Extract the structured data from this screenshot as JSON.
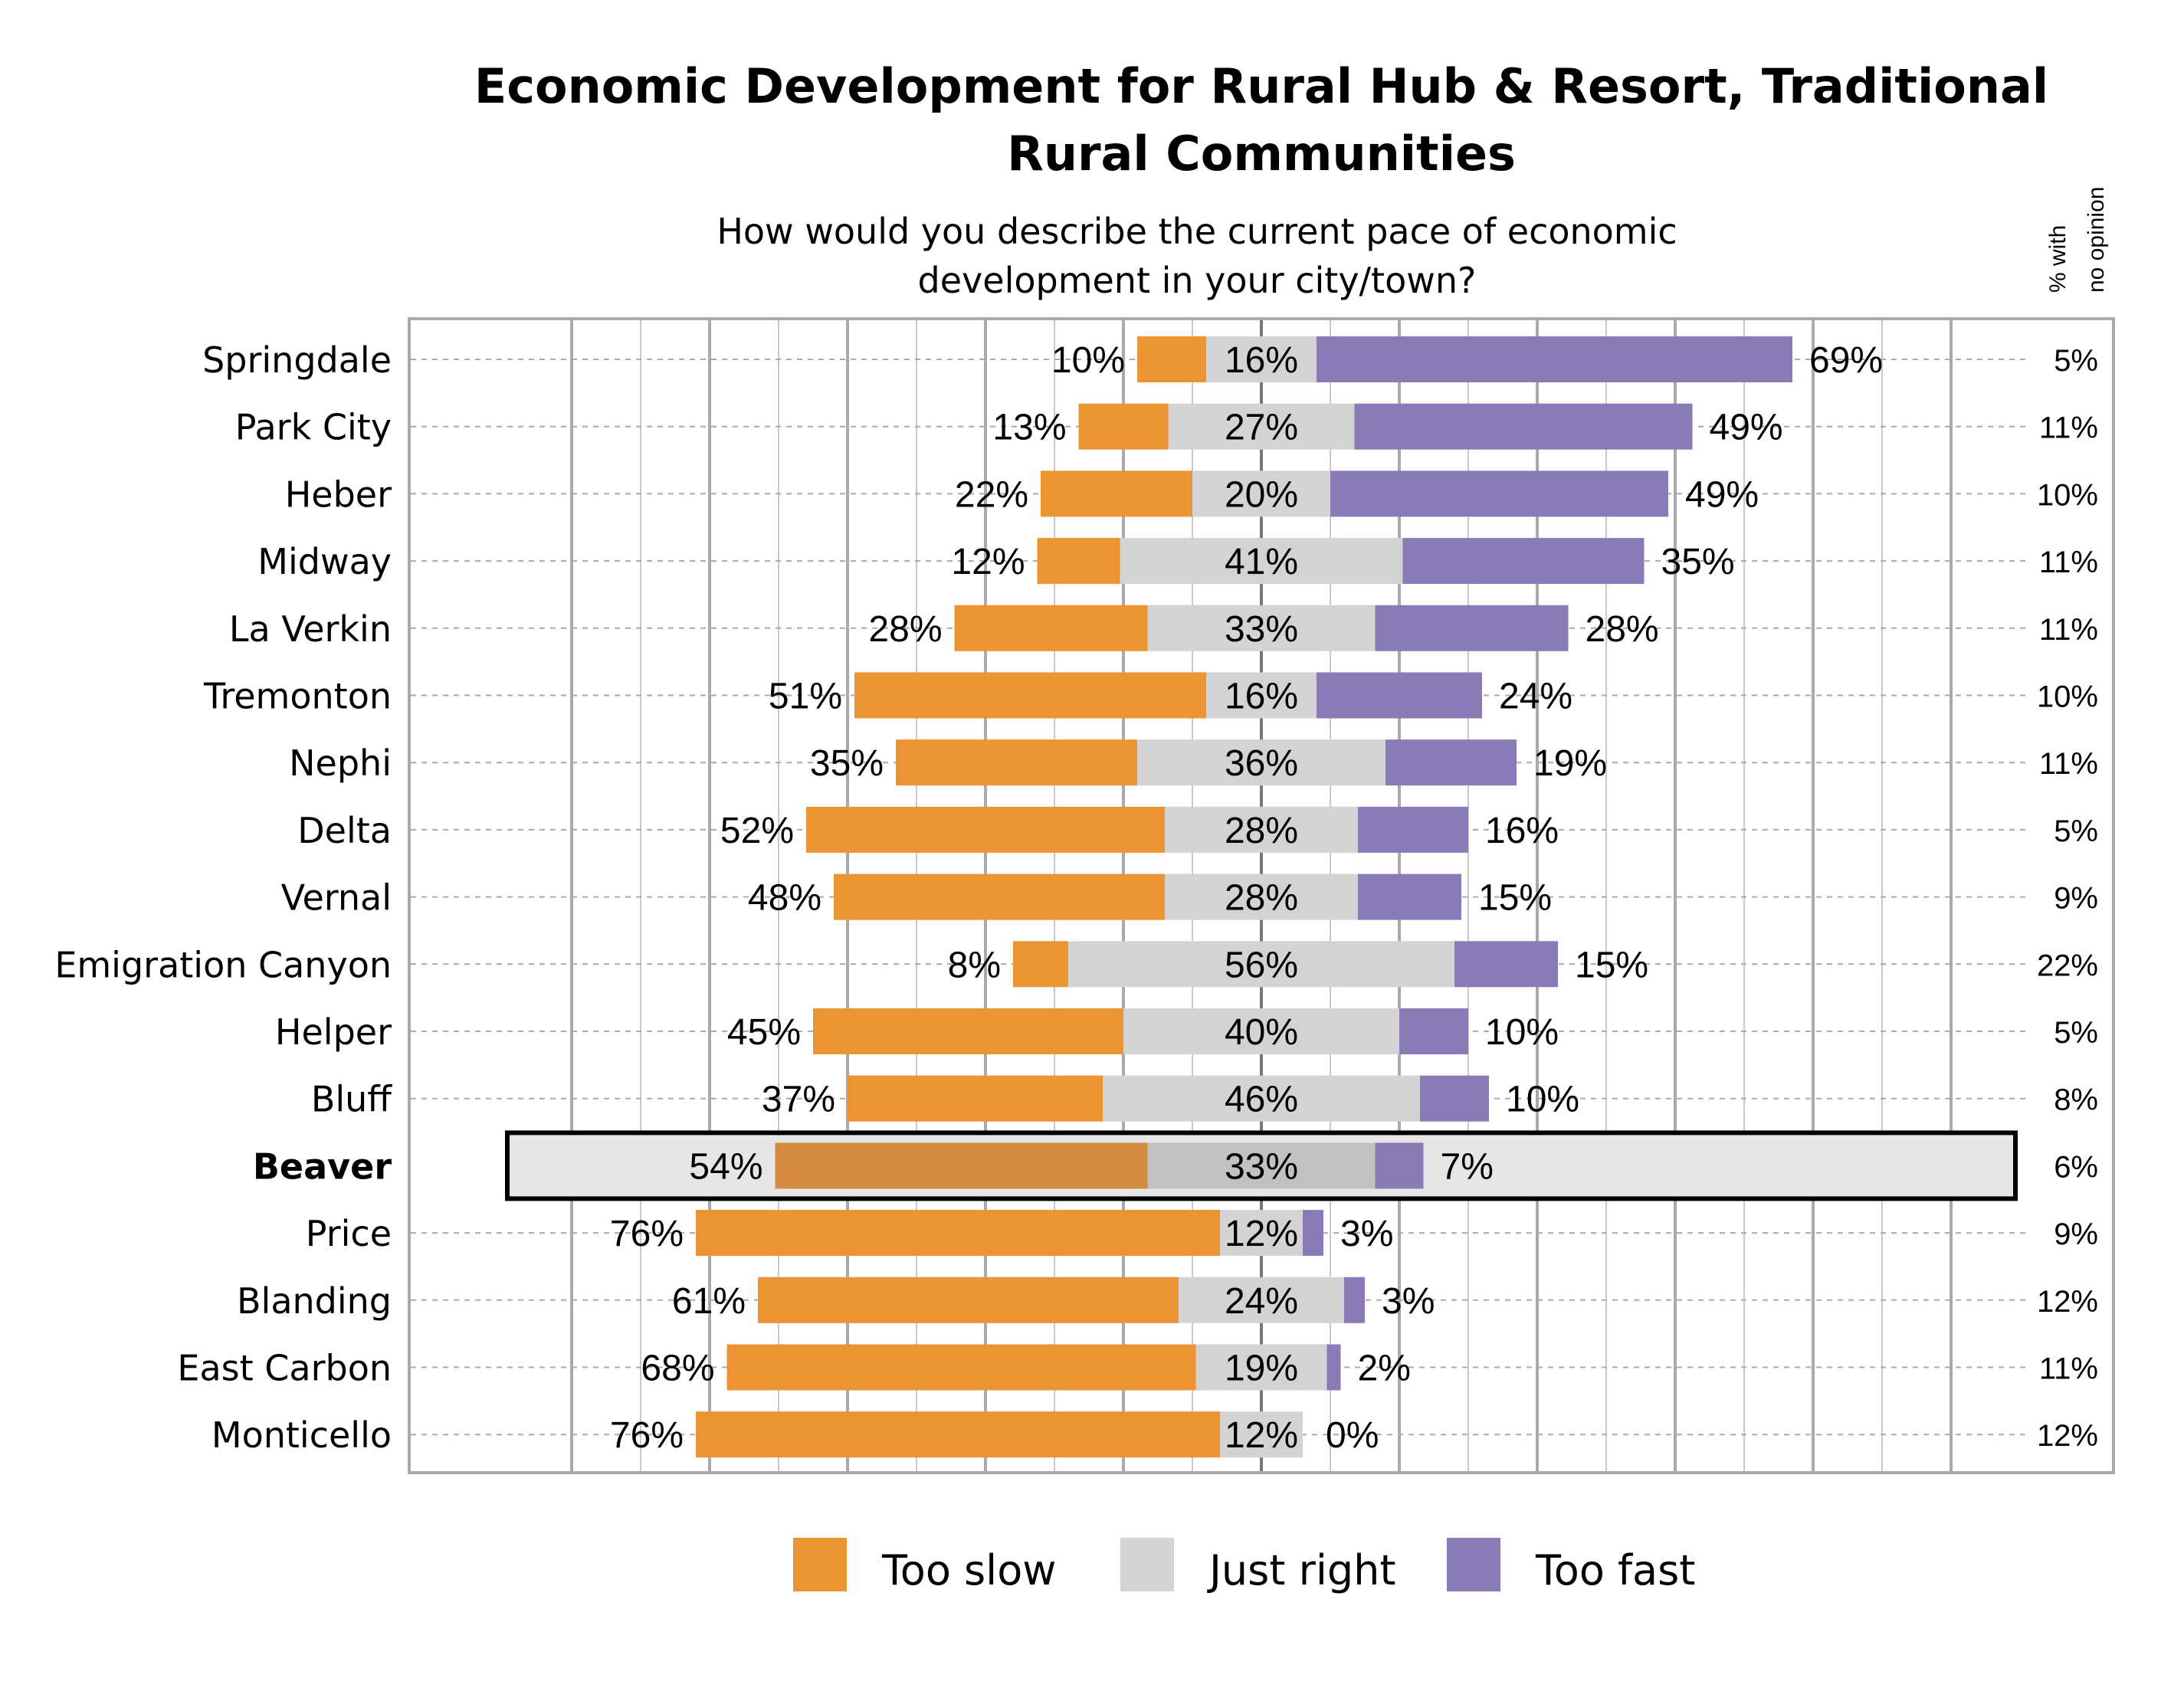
{
  "chart_data": {
    "type": "bar",
    "orientation": "horizontal",
    "stacked": "diverging",
    "title": "Economic Development for Rural Hub & Resort, Traditional Rural Communities",
    "title_lines": [
      "Economic Development for Rural Hub & Resort, Traditional",
      "Rural Communities"
    ],
    "subtitle_lines": [
      "How would you describe the current pace of economic",
      "development in your city/town?"
    ],
    "side_column_header": [
      "% with",
      "no opinion"
    ],
    "xlim": [
      -100,
      100
    ],
    "grid": true,
    "legend_placement": "bottom",
    "highlight_category": "Beaver",
    "categories": [
      "Springdale",
      "Park City",
      "Heber",
      "Midway",
      "La Verkin",
      "Tremonton",
      "Nephi",
      "Delta",
      "Vernal",
      "Emigration Canyon",
      "Helper",
      "Bluff",
      "Beaver",
      "Price",
      "Blanding",
      "East Carbon",
      "Monticello"
    ],
    "series": [
      {
        "name": "Too slow",
        "color": "#ec9433",
        "values": [
          10,
          13,
          22,
          12,
          28,
          51,
          35,
          52,
          48,
          8,
          45,
          37,
          54,
          76,
          61,
          68,
          76
        ]
      },
      {
        "name": "Just right",
        "color": "#d3d3d3",
        "values": [
          16,
          27,
          20,
          41,
          33,
          16,
          36,
          28,
          28,
          56,
          40,
          46,
          33,
          12,
          24,
          19,
          12
        ]
      },
      {
        "name": "Too fast",
        "color": "#8a7bb7",
        "values": [
          69,
          49,
          49,
          35,
          28,
          24,
          19,
          16,
          15,
          15,
          10,
          10,
          7,
          3,
          3,
          2,
          0
        ]
      }
    ],
    "no_opinion": [
      5,
      11,
      10,
      11,
      11,
      10,
      11,
      5,
      9,
      22,
      5,
      8,
      6,
      9,
      12,
      11,
      12
    ],
    "highlight_colors": {
      "Too slow": "#d38b40",
      "Just right": "#c1c1c1",
      "Too fast": "#8a7bb5",
      "band": "#e6e6e6"
    }
  }
}
